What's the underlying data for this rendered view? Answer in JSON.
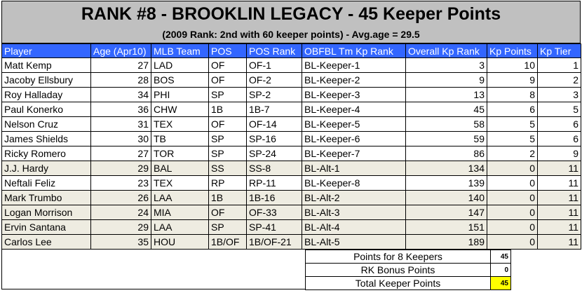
{
  "title": "RANK #8 - BROOKLIN LEGACY - 45 Keeper Points",
  "subtitle": "(2009 Rank: 2nd with 60 keeper points) - Avg.age = 29.5",
  "columns": [
    "Player",
    "Age (Apr10)",
    "MLB Team",
    "POS",
    "POS Rank",
    "OBFBL Tm Kp Rank",
    "Overall Kp Rank",
    "Kp Points",
    "Kp Tier"
  ],
  "rows": [
    {
      "player": "Matt Kemp",
      "age": "27",
      "team": "LAD",
      "pos": "OF",
      "pos_rank": "OF-1",
      "tm_kp_rank": "BL-Keeper-1",
      "overall": "3",
      "points": "10",
      "tier": "1",
      "style": "plain"
    },
    {
      "player": "Jacoby Ellsbury",
      "age": "28",
      "team": "BOS",
      "pos": "OF",
      "pos_rank": "OF-2",
      "tm_kp_rank": "BL-Keeper-2",
      "overall": "9",
      "points": "9",
      "tier": "2",
      "style": "plain"
    },
    {
      "player": "Roy Halladay",
      "age": "34",
      "team": "PHI",
      "pos": "SP",
      "pos_rank": "SP-2",
      "tm_kp_rank": "BL-Keeper-3",
      "overall": "13",
      "points": "8",
      "tier": "3",
      "style": "plain"
    },
    {
      "player": "Paul Konerko",
      "age": "36",
      "team": "CHW",
      "pos": "1B",
      "pos_rank": "1B-7",
      "tm_kp_rank": "BL-Keeper-4",
      "overall": "45",
      "points": "6",
      "tier": "5",
      "style": "plain"
    },
    {
      "player": "Nelson Cruz",
      "age": "31",
      "team": "TEX",
      "pos": "OF",
      "pos_rank": "OF-14",
      "tm_kp_rank": "BL-Keeper-5",
      "overall": "58",
      "points": "5",
      "tier": "6",
      "style": "plain"
    },
    {
      "player": "James Shields",
      "age": "30",
      "team": "TB",
      "pos": "SP",
      "pos_rank": "SP-16",
      "tm_kp_rank": "BL-Keeper-6",
      "overall": "59",
      "points": "5",
      "tier": "6",
      "style": "plain"
    },
    {
      "player": "Ricky Romero",
      "age": "27",
      "team": "TOR",
      "pos": "SP",
      "pos_rank": "SP-24",
      "tm_kp_rank": "BL-Keeper-7",
      "overall": "86",
      "points": "2",
      "tier": "9",
      "style": "plain"
    },
    {
      "player": "J.J. Hardy",
      "age": "29",
      "team": "BAL",
      "pos": "SS",
      "pos_rank": "SS-8",
      "tm_kp_rank": "BL-Alt-1",
      "overall": "134",
      "points": "0",
      "tier": "11",
      "style": "shaded"
    },
    {
      "player": "Neftali Feliz",
      "age": "23",
      "team": "TEX",
      "pos": "RP",
      "pos_rank": "RP-11",
      "tm_kp_rank": "BL-Keeper-8",
      "overall": "139",
      "points": "0",
      "tier": "11",
      "style": "plain"
    },
    {
      "player": "Mark Trumbo",
      "age": "26",
      "team": "LAA",
      "pos": "1B",
      "pos_rank": "1B-16",
      "tm_kp_rank": "BL-Alt-2",
      "overall": "140",
      "points": "0",
      "tier": "11",
      "style": "shaded"
    },
    {
      "player": "Logan Morrison",
      "age": "24",
      "team": "MIA",
      "pos": "OF",
      "pos_rank": "OF-33",
      "tm_kp_rank": "BL-Alt-3",
      "overall": "147",
      "points": "0",
      "tier": "11",
      "style": "shaded"
    },
    {
      "player": "Ervin Santana",
      "age": "29",
      "team": "LAA",
      "pos": "SP",
      "pos_rank": "SP-41",
      "tm_kp_rank": "BL-Alt-4",
      "overall": "151",
      "points": "0",
      "tier": "11",
      "style": "shaded"
    },
    {
      "player": "Carlos Lee",
      "age": "35",
      "team": "HOU",
      "pos": "1B/OF",
      "pos_rank": "1B/OF-21",
      "tm_kp_rank": "BL-Alt-5",
      "overall": "189",
      "points": "0",
      "tier": "11",
      "style": "shaded"
    }
  ],
  "summary": {
    "points_label": "Points for 8 Keepers",
    "points_value": "45",
    "bonus_label": "RK Bonus Points",
    "bonus_value": "0",
    "total_label": "Total Keeper Points",
    "total_value": "45"
  },
  "colors": {
    "header_bg": "#3366ff",
    "title_bg": "#c0c0c0",
    "shaded_row": "#eeece1",
    "total_highlight": "#ffff00"
  }
}
